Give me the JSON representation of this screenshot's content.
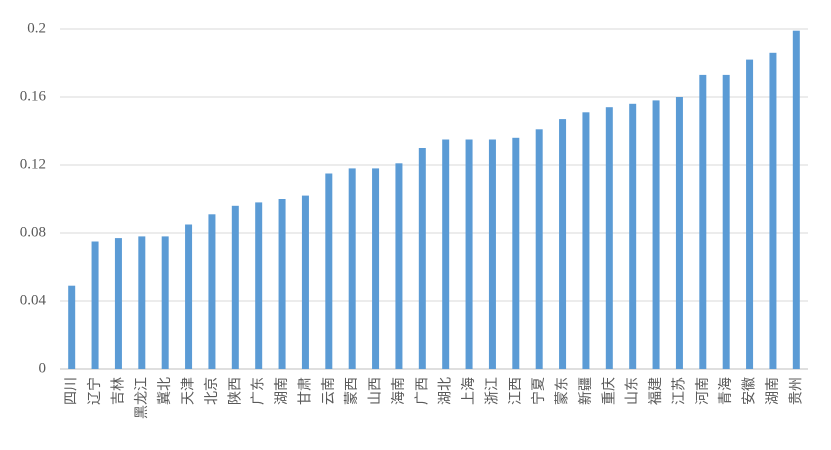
{
  "chart_data": {
    "type": "bar",
    "categories": [
      "四川",
      "辽宁",
      "吉林",
      "黑龙江",
      "冀北",
      "天津",
      "北京",
      "陕西",
      "广东",
      "湖南",
      "甘肃",
      "云南",
      "蒙西",
      "山西",
      "海南",
      "广西",
      "湖北",
      "上海",
      "浙江",
      "江西",
      "宁夏",
      "蒙东",
      "新疆",
      "重庆",
      "山东",
      "福建",
      "江苏",
      "河南",
      "青海",
      "安徽",
      "湖南",
      "贵州"
    ],
    "values": [
      0.049,
      0.075,
      0.077,
      0.078,
      0.078,
      0.085,
      0.091,
      0.096,
      0.098,
      0.1,
      0.102,
      0.115,
      0.118,
      0.118,
      0.121,
      0.13,
      0.135,
      0.135,
      0.135,
      0.136,
      0.141,
      0.147,
      0.151,
      0.154,
      0.156,
      0.158,
      0.16,
      0.173,
      0.173,
      0.182,
      0.186,
      0.199
    ],
    "color": "#5b9bd5",
    "ylim": [
      0,
      0.2
    ],
    "yticks": [
      0,
      0.04,
      0.08,
      0.12,
      0.16,
      0.2
    ],
    "grid": true
  }
}
